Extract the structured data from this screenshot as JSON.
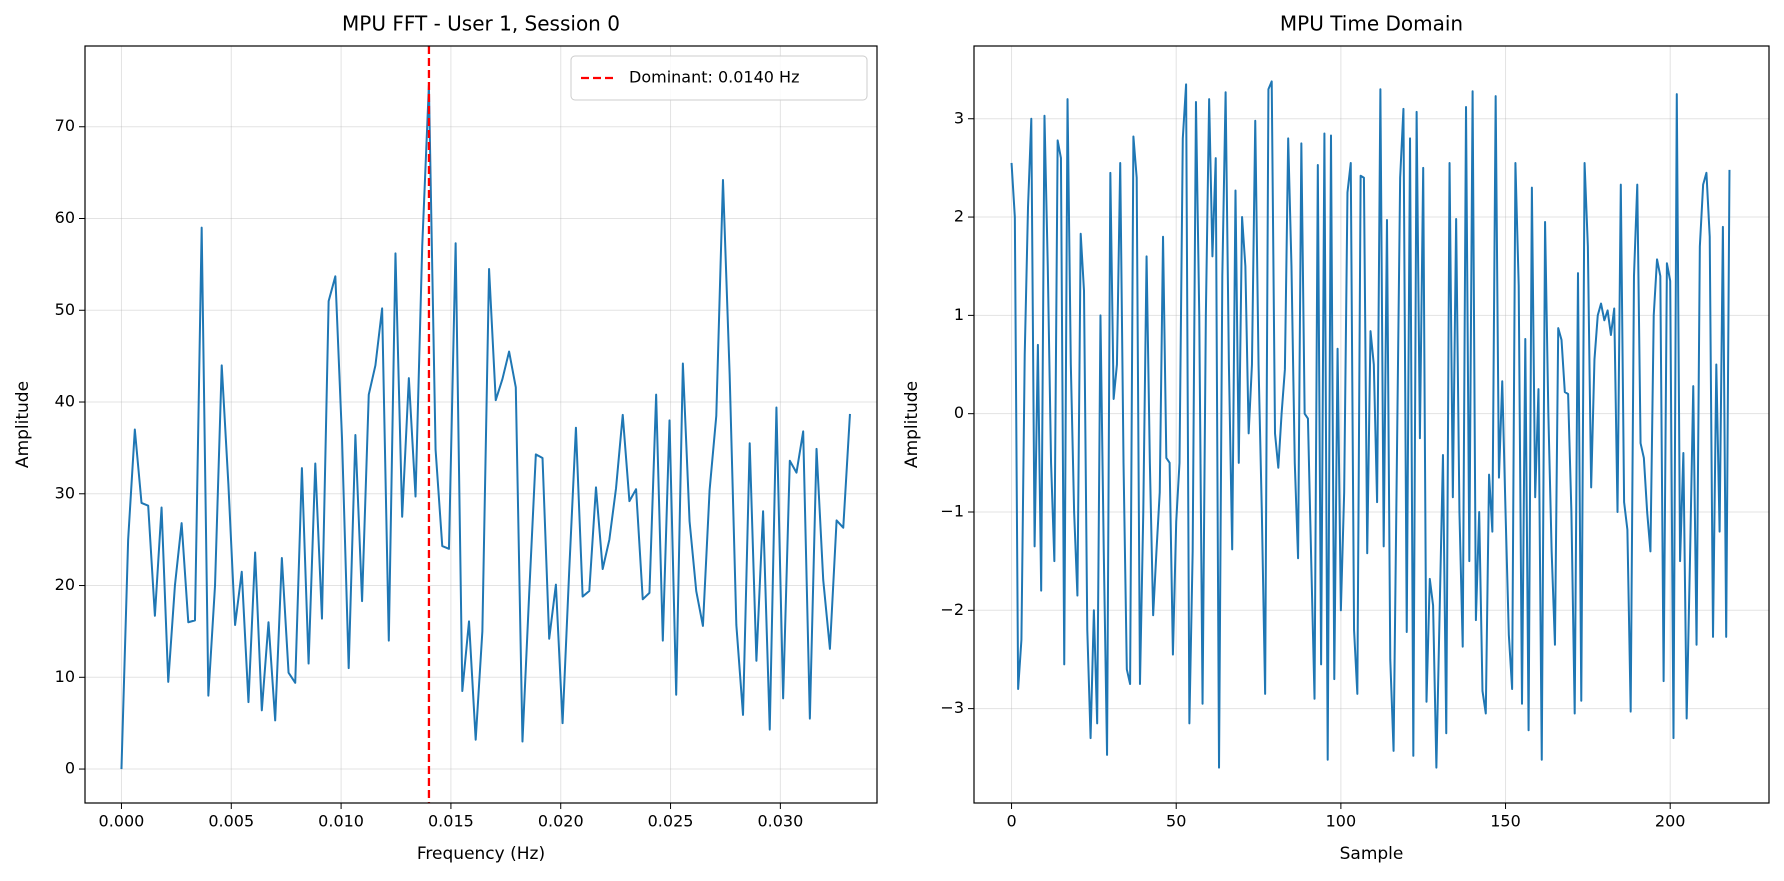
{
  "chart_data": [
    {
      "type": "line",
      "title": "MPU FFT - User 1, Session 0",
      "xlabel": "Frequency (Hz)",
      "ylabel": "Amplitude",
      "x": [
        0,
        0.000304,
        0.000609,
        0.000913,
        0.001217,
        0.001522,
        0.001826,
        0.00213,
        0.002434,
        0.002739,
        0.003043,
        0.003347,
        0.003652,
        0.003956,
        0.00426,
        0.004565,
        0.004869,
        0.005173,
        0.005477,
        0.005782,
        0.006086,
        0.00639,
        0.006695,
        0.006999,
        0.007303,
        0.007608,
        0.007912,
        0.008216,
        0.00852,
        0.008825,
        0.009129,
        0.009433,
        0.009738,
        0.010042,
        0.010346,
        0.010651,
        0.010955,
        0.011259,
        0.011563,
        0.011868,
        0.012172,
        0.012476,
        0.012781,
        0.013085,
        0.013389,
        0.013694,
        0.013998,
        0.014302,
        0.014606,
        0.014911,
        0.015215,
        0.015519,
        0.015824,
        0.016128,
        0.016432,
        0.016737,
        0.017041,
        0.017345,
        0.017649,
        0.017954,
        0.018258,
        0.018562,
        0.018867,
        0.019171,
        0.019475,
        0.01978,
        0.020084,
        0.020388,
        0.020692,
        0.020997,
        0.021301,
        0.021605,
        0.02191,
        0.022214,
        0.022518,
        0.022823,
        0.023127,
        0.023431,
        0.023735,
        0.02404,
        0.024344,
        0.024648,
        0.024953,
        0.025257,
        0.025561,
        0.025866,
        0.02617,
        0.026474,
        0.026778,
        0.027083,
        0.027387,
        0.027691,
        0.027996,
        0.0283,
        0.028604,
        0.028909,
        0.029213,
        0.029517,
        0.029821,
        0.030126,
        0.03043,
        0.030734,
        0.031039,
        0.031343,
        0.031647,
        0.031952,
        0.032256,
        0.03256,
        0.032864,
        0.033169
      ],
      "series": [
        {
          "color": "#1f77b4",
          "values": [
            0,
            25,
            37,
            29,
            28.7,
            16.7,
            28.5,
            9.5,
            20,
            26.8,
            16,
            16.2,
            59,
            8,
            20,
            44,
            31,
            15.7,
            21.5,
            7.3,
            23.6,
            6.4,
            16,
            5.3,
            23,
            10.5,
            9.4,
            32.8,
            11.5,
            33.3,
            16.4,
            51,
            53.7,
            36,
            11,
            36.4,
            18.3,
            40.8,
            44,
            50.2,
            14,
            56.2,
            27.5,
            42.6,
            29.7,
            57,
            74.5,
            34.8,
            24.3,
            24,
            57.3,
            8.5,
            16.1,
            3.2,
            15,
            54.5,
            40.2,
            42.5,
            45.5,
            41.6,
            3,
            19,
            34.3,
            33.9,
            14.2,
            20.1,
            5,
            21.7,
            37.2,
            18.8,
            19.4,
            30.7,
            21.8,
            25,
            30.6,
            38.6,
            29.2,
            30.5,
            18.5,
            19.2,
            40.8,
            14,
            38,
            8.1,
            44.2,
            27,
            19.4,
            15.6,
            30.4,
            38.5,
            64.2,
            43,
            15.7,
            5.9,
            35.5,
            11.8,
            28.1,
            4.3,
            39.4,
            7.7,
            33.6,
            32.3,
            36.8,
            5.5,
            34.9,
            20.6,
            13.1,
            27.1,
            26.3,
            38.7
          ]
        }
      ],
      "vlines": [
        {
          "name": "Dominant: 0.0140 Hz",
          "x": 0.014,
          "color": "#ff0000",
          "dashed": true
        }
      ],
      "legend": "upper right",
      "xlim": [
        -0.00166,
        0.0344
      ],
      "ylim": [
        -3.7,
        78.8
      ],
      "xticks": [
        {
          "value": 0,
          "label": "0.000"
        },
        {
          "value": 0.005,
          "label": "0.005"
        },
        {
          "value": 0.01,
          "label": "0.010"
        },
        {
          "value": 0.015,
          "label": "0.015"
        },
        {
          "value": 0.02,
          "label": "0.020"
        },
        {
          "value": 0.025,
          "label": "0.025"
        },
        {
          "value": 0.03,
          "label": "0.030"
        }
      ],
      "yticks": [
        0,
        10,
        20,
        30,
        40,
        50,
        60,
        70
      ],
      "grid": true
    },
    {
      "type": "line",
      "title": "MPU Time Domain",
      "xlabel": "Sample",
      "ylabel": "Amplitude",
      "series": [
        {
          "color": "#1f77b4",
          "values": [
            2.55,
            2.0,
            -2.8,
            -2.3,
            0.6,
            2.1,
            3.0,
            -1.35,
            0.7,
            -1.8,
            3.03,
            1.5,
            -0.5,
            -1.5,
            2.78,
            2.6,
            -2.55,
            3.2,
            0.5,
            -1.0,
            -1.85,
            1.83,
            1.25,
            -2.2,
            -3.3,
            -2.0,
            -3.15,
            1.0,
            -1.4,
            -3.47,
            2.45,
            0.15,
            0.5,
            2.55,
            -0.5,
            -2.6,
            -2.75,
            2.82,
            2.4,
            -2.75,
            -1.0,
            1.6,
            -0.5,
            -2.05,
            -1.4,
            -0.8,
            1.8,
            -0.45,
            -0.5,
            -2.45,
            -1.1,
            -0.5,
            2.8,
            3.35,
            -3.15,
            -1.4,
            3.17,
            1.0,
            -2.95,
            1.0,
            3.2,
            1.6,
            2.6,
            -3.6,
            1.4,
            3.27,
            0.5,
            -1.38,
            2.27,
            -0.5,
            2.0,
            1.5,
            -0.2,
            0.5,
            2.98,
            0.5,
            -1.0,
            -2.85,
            3.3,
            3.38,
            -0.2,
            -0.55,
            0.0,
            0.45,
            2.8,
            1.5,
            -0.5,
            -1.47,
            2.75,
            0.0,
            -0.05,
            -1.5,
            -2.9,
            2.53,
            -2.55,
            2.85,
            -3.52,
            2.83,
            -2.7,
            0.66,
            -2.0,
            -0.8,
            2.25,
            2.55,
            -2.2,
            -2.85,
            2.42,
            2.4,
            -1.42,
            0.84,
            0.5,
            -0.9,
            3.3,
            -1.35,
            1.97,
            -2.5,
            -3.43,
            -0.5,
            2.4,
            3.1,
            -2.22,
            2.8,
            -3.48,
            3.07,
            -0.25,
            2.5,
            -2.93,
            -1.68,
            -1.95,
            -3.6,
            -2.0,
            -0.42,
            -3.25,
            2.55,
            -0.85,
            1.98,
            -1.0,
            -2.37,
            3.12,
            -1.5,
            3.28,
            -2.1,
            -1.0,
            -2.82,
            -3.05,
            -0.62,
            -1.2,
            3.23,
            -0.65,
            0.33,
            -1.0,
            -2.25,
            -2.8,
            2.55,
            1.3,
            -2.95,
            0.76,
            -3.22,
            2.3,
            -0.85,
            0.25,
            -3.52,
            1.95,
            0.0,
            -1.4,
            -2.35,
            0.87,
            0.75,
            0.22,
            0.2,
            -1.0,
            -3.05,
            1.43,
            -2.92,
            2.55,
            1.7,
            -0.75,
            0.55,
            1.0,
            1.12,
            0.95,
            1.05,
            0.8,
            1.07,
            -1.0,
            2.33,
            -0.9,
            -1.18,
            -3.03,
            1.4,
            2.33,
            -0.3,
            -0.45,
            -1.0,
            -1.4,
            1.0,
            1.57,
            1.4,
            -2.72,
            1.53,
            1.35,
            -3.3,
            3.25,
            -1.5,
            -0.4,
            -3.1,
            -1.5,
            0.28,
            -2.35,
            1.7,
            2.33,
            2.45,
            1.8,
            -2.27,
            0.5,
            -1.2,
            1.9,
            -2.27,
            2.48
          ]
        }
      ],
      "xlim": [
        -11.4,
        230
      ],
      "ylim": [
        -3.96,
        3.74
      ],
      "xticks": [
        0,
        50,
        100,
        150,
        200
      ],
      "yticks": [
        {
          "value": -3,
          "label": "−3"
        },
        {
          "value": -2,
          "label": "−2"
        },
        {
          "value": -1,
          "label": "−1"
        },
        0,
        1,
        2,
        3
      ],
      "grid": true
    }
  ]
}
